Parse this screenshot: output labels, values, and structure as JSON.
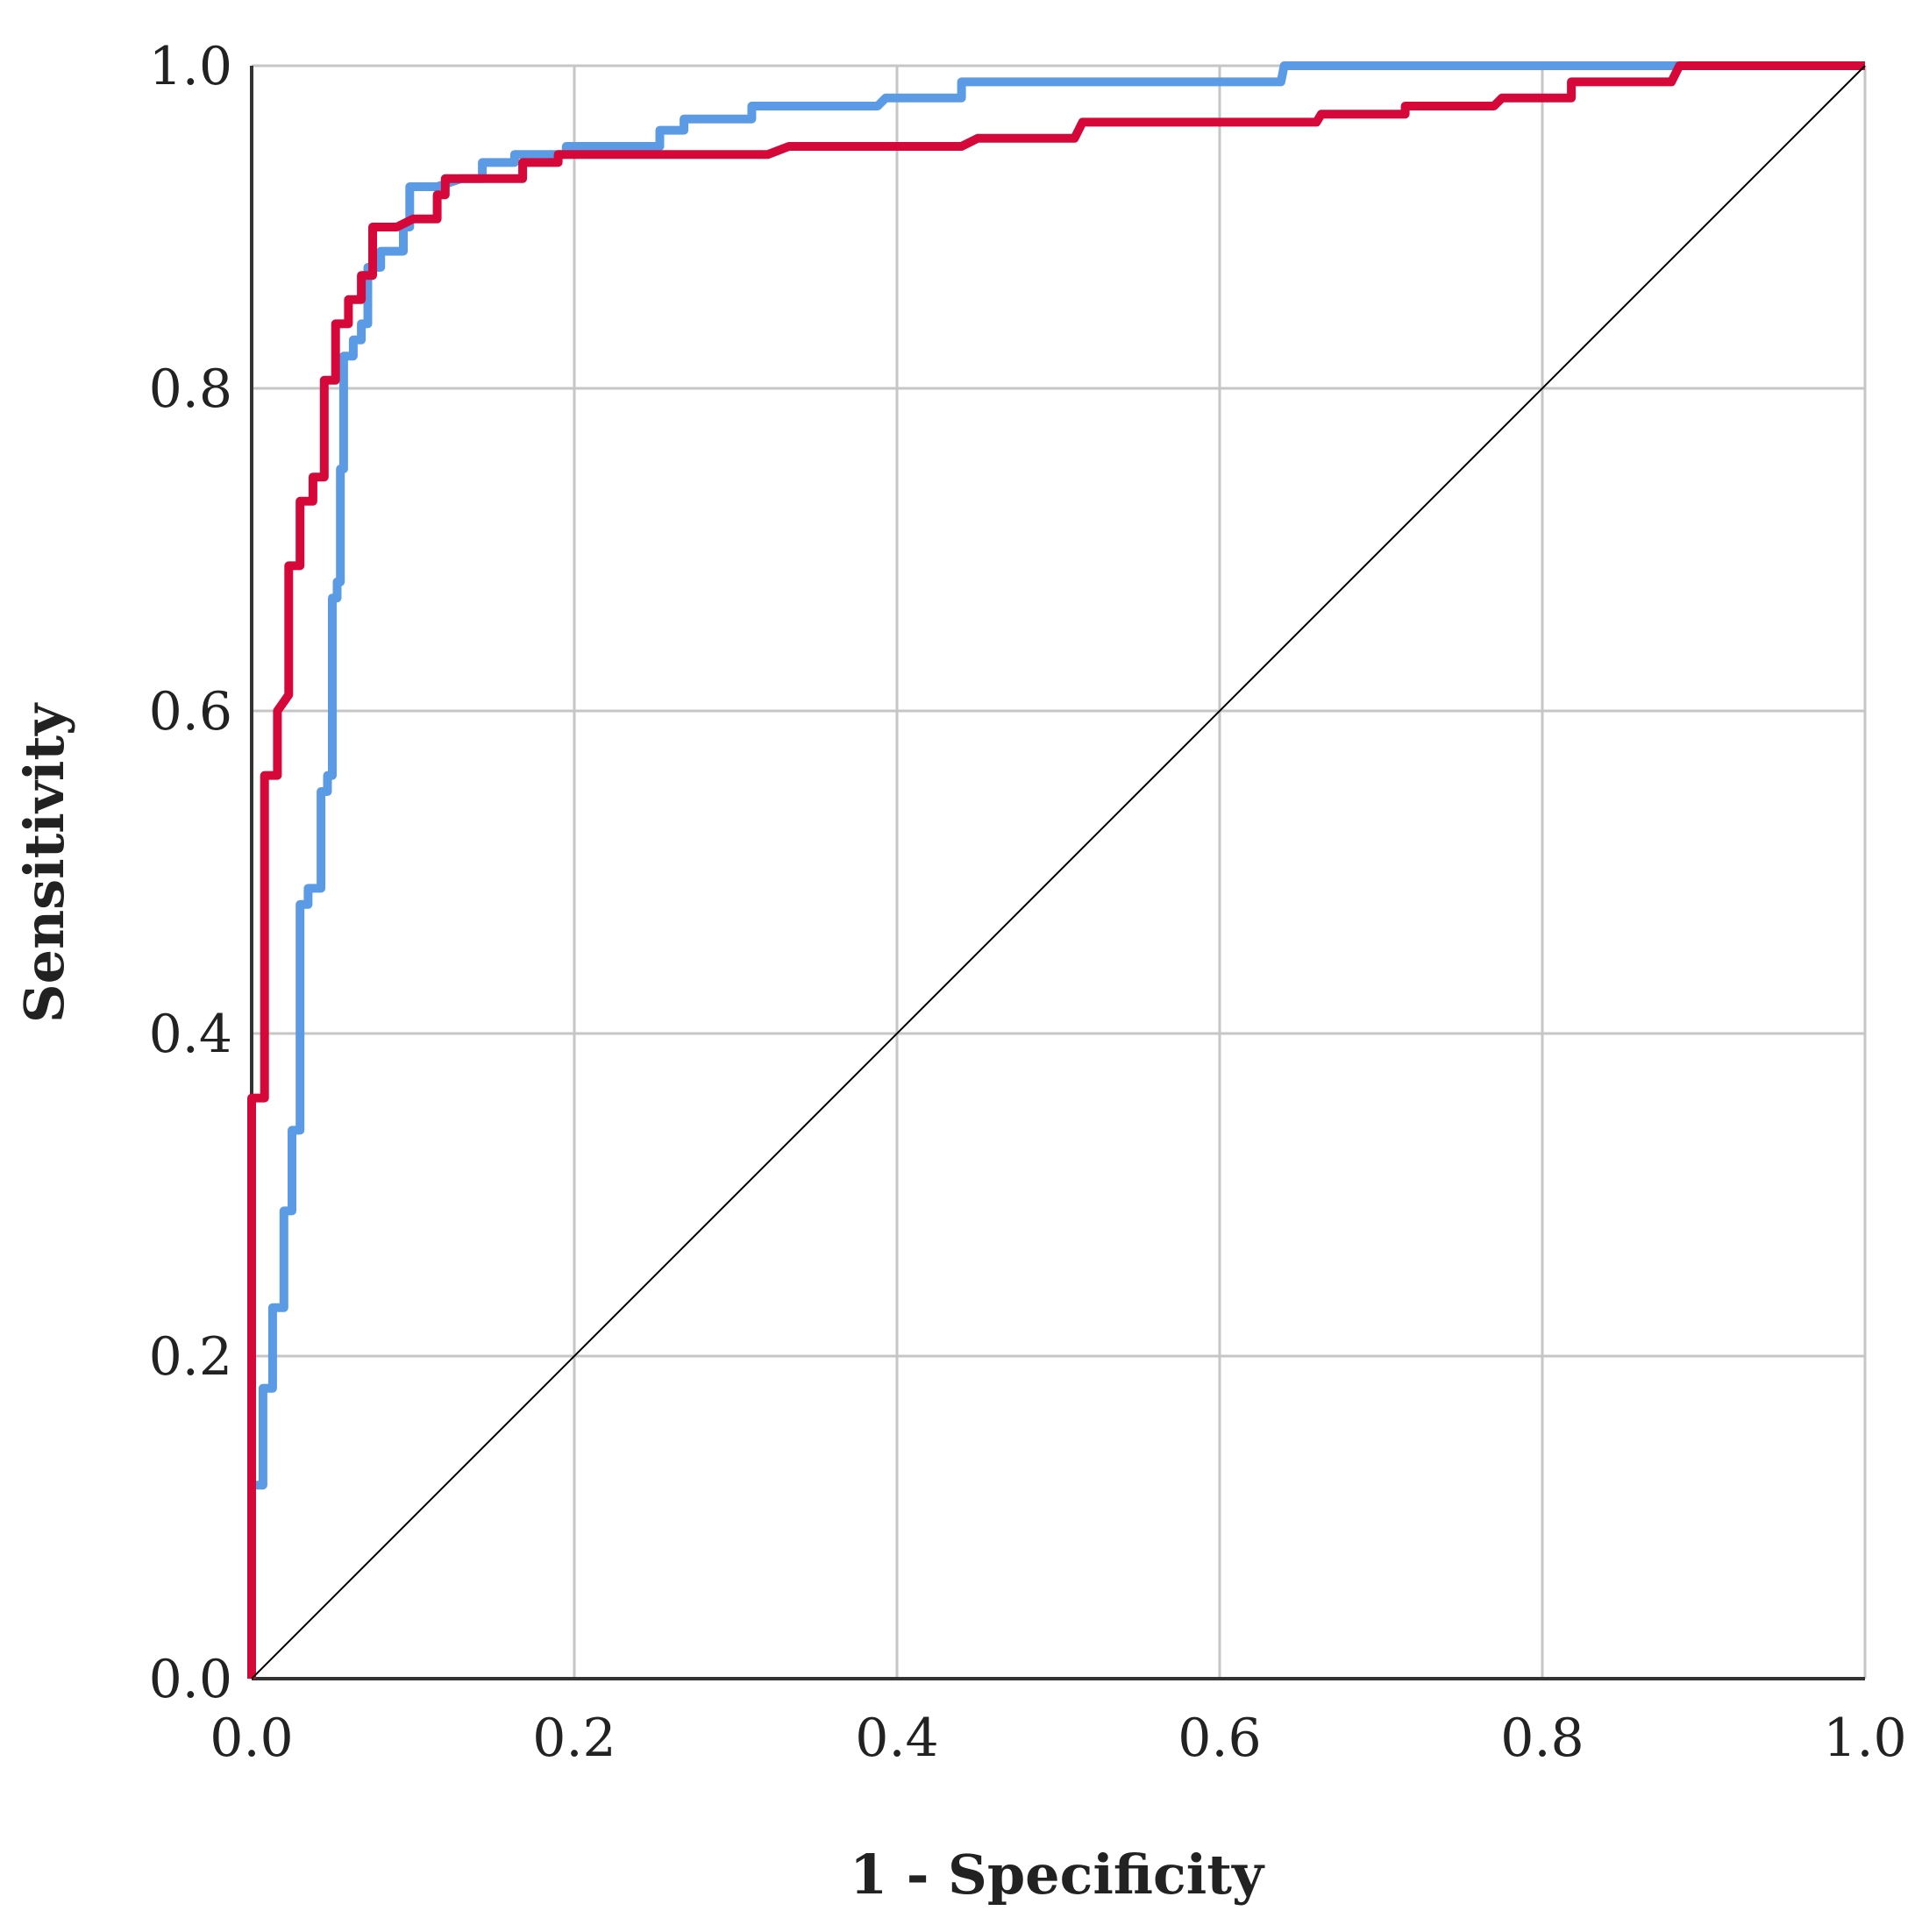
{
  "chart_data": {
    "type": "line",
    "title": "",
    "xlabel": "1 - Specificity",
    "ylabel": "Sensitivity",
    "xlim": [
      0,
      1
    ],
    "ylim": [
      0,
      1
    ],
    "grid": true,
    "legend": "none",
    "x_ticks": [
      "0.0",
      "0.2",
      "0.4",
      "0.6",
      "0.8",
      "1.0"
    ],
    "y_ticks": [
      "0.0",
      "0.2",
      "0.4",
      "0.6",
      "0.8",
      "1.0"
    ],
    "series": [
      {
        "name": "blue-roc-curve",
        "color": "#5b9be6",
        "points": [
          [
            0.0,
            0.0
          ],
          [
            0.0,
            0.12
          ],
          [
            0.007,
            0.12
          ],
          [
            0.007,
            0.18
          ],
          [
            0.013,
            0.18
          ],
          [
            0.013,
            0.23
          ],
          [
            0.02,
            0.23
          ],
          [
            0.02,
            0.29
          ],
          [
            0.025,
            0.29
          ],
          [
            0.025,
            0.34
          ],
          [
            0.03,
            0.34
          ],
          [
            0.03,
            0.48
          ],
          [
            0.035,
            0.48
          ],
          [
            0.035,
            0.49
          ],
          [
            0.043,
            0.49
          ],
          [
            0.043,
            0.55
          ],
          [
            0.047,
            0.55
          ],
          [
            0.047,
            0.56
          ],
          [
            0.05,
            0.56
          ],
          [
            0.05,
            0.67
          ],
          [
            0.053,
            0.67
          ],
          [
            0.053,
            0.68
          ],
          [
            0.055,
            0.68
          ],
          [
            0.055,
            0.75
          ],
          [
            0.057,
            0.75
          ],
          [
            0.057,
            0.82
          ],
          [
            0.063,
            0.82
          ],
          [
            0.063,
            0.83
          ],
          [
            0.068,
            0.83
          ],
          [
            0.068,
            0.84
          ],
          [
            0.072,
            0.84
          ],
          [
            0.072,
            0.875
          ],
          [
            0.08,
            0.875
          ],
          [
            0.08,
            0.885
          ],
          [
            0.094,
            0.885
          ],
          [
            0.094,
            0.9
          ],
          [
            0.098,
            0.9
          ],
          [
            0.098,
            0.925
          ],
          [
            0.115,
            0.925
          ],
          [
            0.13,
            0.93
          ],
          [
            0.143,
            0.93
          ],
          [
            0.143,
            0.94
          ],
          [
            0.163,
            0.94
          ],
          [
            0.163,
            0.945
          ],
          [
            0.195,
            0.945
          ],
          [
            0.195,
            0.95
          ],
          [
            0.253,
            0.95
          ],
          [
            0.253,
            0.96
          ],
          [
            0.268,
            0.96
          ],
          [
            0.268,
            0.967
          ],
          [
            0.31,
            0.967
          ],
          [
            0.31,
            0.975
          ],
          [
            0.388,
            0.975
          ],
          [
            0.393,
            0.98
          ],
          [
            0.44,
            0.98
          ],
          [
            0.44,
            0.99
          ],
          [
            0.638,
            0.99
          ],
          [
            0.64,
            1.0
          ],
          [
            1.0,
            1.0
          ]
        ]
      },
      {
        "name": "red-roc-curve",
        "color": "#d6083a",
        "points": [
          [
            0.0,
            0.0
          ],
          [
            0.0,
            0.36
          ],
          [
            0.008,
            0.36
          ],
          [
            0.008,
            0.56
          ],
          [
            0.016,
            0.56
          ],
          [
            0.016,
            0.6
          ],
          [
            0.023,
            0.61
          ],
          [
            0.023,
            0.69
          ],
          [
            0.03,
            0.69
          ],
          [
            0.03,
            0.73
          ],
          [
            0.038,
            0.73
          ],
          [
            0.038,
            0.745
          ],
          [
            0.045,
            0.745
          ],
          [
            0.045,
            0.805
          ],
          [
            0.052,
            0.805
          ],
          [
            0.052,
            0.84
          ],
          [
            0.06,
            0.84
          ],
          [
            0.06,
            0.855
          ],
          [
            0.068,
            0.855
          ],
          [
            0.068,
            0.87
          ],
          [
            0.075,
            0.87
          ],
          [
            0.075,
            0.9
          ],
          [
            0.09,
            0.9
          ],
          [
            0.1,
            0.905
          ],
          [
            0.115,
            0.905
          ],
          [
            0.115,
            0.92
          ],
          [
            0.12,
            0.92
          ],
          [
            0.12,
            0.93
          ],
          [
            0.168,
            0.93
          ],
          [
            0.168,
            0.94
          ],
          [
            0.19,
            0.94
          ],
          [
            0.19,
            0.945
          ],
          [
            0.32,
            0.945
          ],
          [
            0.333,
            0.95
          ],
          [
            0.44,
            0.95
          ],
          [
            0.45,
            0.955
          ],
          [
            0.51,
            0.955
          ],
          [
            0.515,
            0.965
          ],
          [
            0.66,
            0.965
          ],
          [
            0.663,
            0.97
          ],
          [
            0.715,
            0.97
          ],
          [
            0.715,
            0.975
          ],
          [
            0.77,
            0.975
          ],
          [
            0.775,
            0.98
          ],
          [
            0.818,
            0.98
          ],
          [
            0.818,
            0.99
          ],
          [
            0.88,
            0.99
          ],
          [
            0.885,
            1.0
          ],
          [
            1.0,
            1.0
          ]
        ]
      },
      {
        "name": "reference-diagonal",
        "color": "#000000",
        "points": [
          [
            0,
            0
          ],
          [
            1,
            1
          ]
        ]
      }
    ]
  }
}
